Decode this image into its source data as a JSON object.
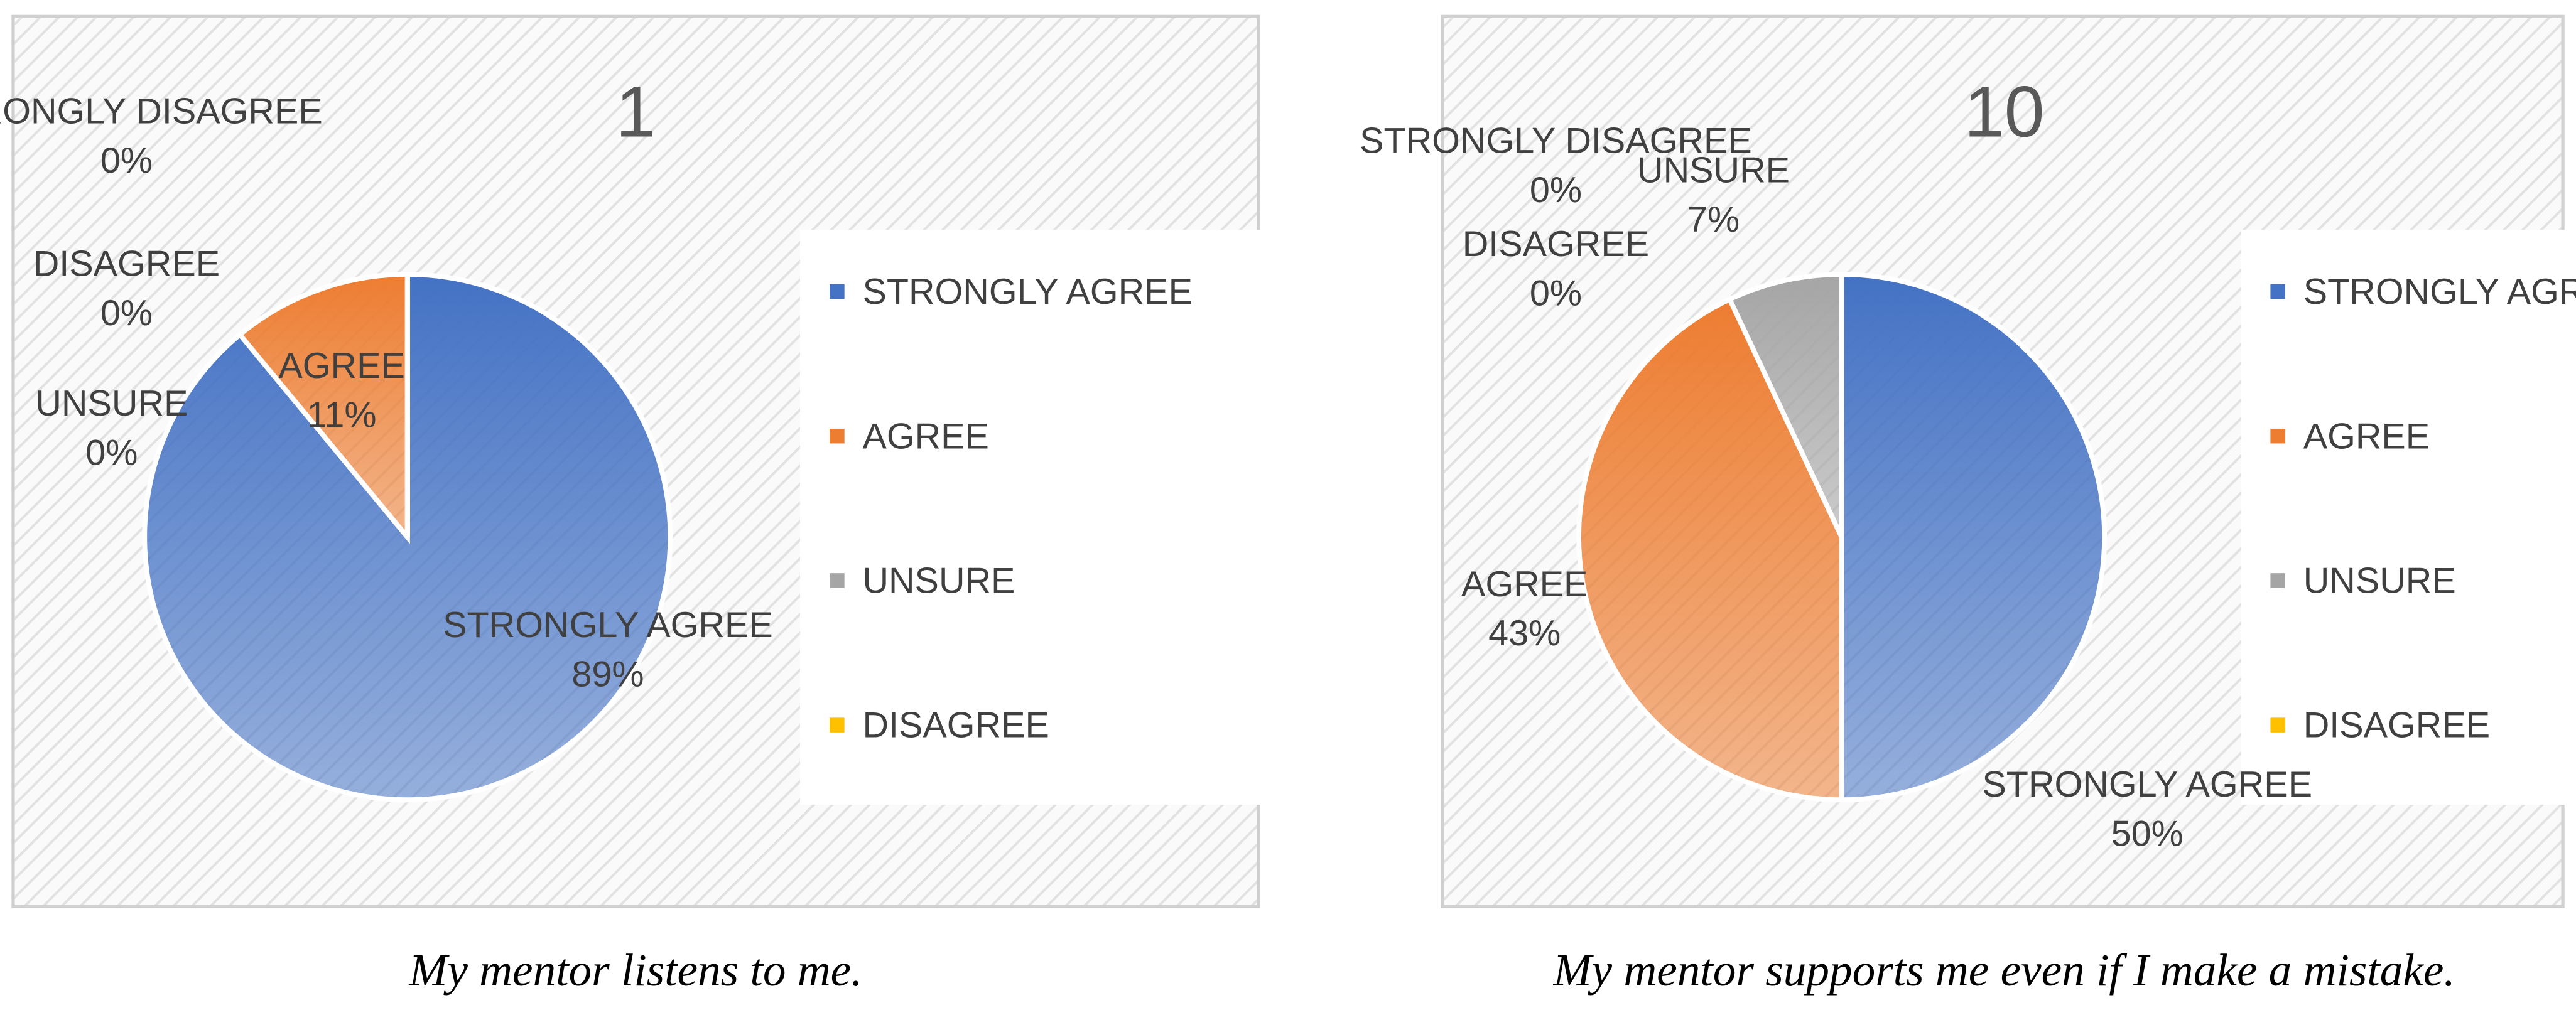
{
  "chart_data": [
    {
      "type": "pie",
      "title": "1",
      "caption": "My mentor listens to me.",
      "categories": [
        "STRONGLY AGREE",
        "AGREE",
        "UNSURE",
        "DISAGREE",
        "STRONGLY DISAGREE"
      ],
      "values": [
        89,
        11,
        0,
        0,
        0
      ],
      "value_labels": [
        "89%",
        "11%",
        "0%",
        "0%",
        "0%"
      ],
      "colors": [
        "#4472c4",
        "#ed7d31",
        "#a5a5a5",
        "#ffc000",
        "#5b9bd5"
      ],
      "legend": [
        "STRONGLY AGREE",
        "AGREE",
        "UNSURE",
        "DISAGREE"
      ]
    },
    {
      "type": "pie",
      "title": "10",
      "caption": "My mentor supports me even if I make a mistake.",
      "categories": [
        "STRONGLY AGREE",
        "AGREE",
        "UNSURE",
        "DISAGREE",
        "STRONGLY DISAGREE"
      ],
      "values": [
        50,
        43,
        7,
        0,
        0
      ],
      "value_labels": [
        "50%",
        "43%",
        "7%",
        "0%",
        "0%"
      ],
      "colors": [
        "#4472c4",
        "#ed7d31",
        "#a5a5a5",
        "#ffc000",
        "#5b9bd5"
      ],
      "legend": [
        "STRONGLY AGREE",
        "AGREE",
        "UNSURE",
        "DISAGREE"
      ]
    }
  ]
}
